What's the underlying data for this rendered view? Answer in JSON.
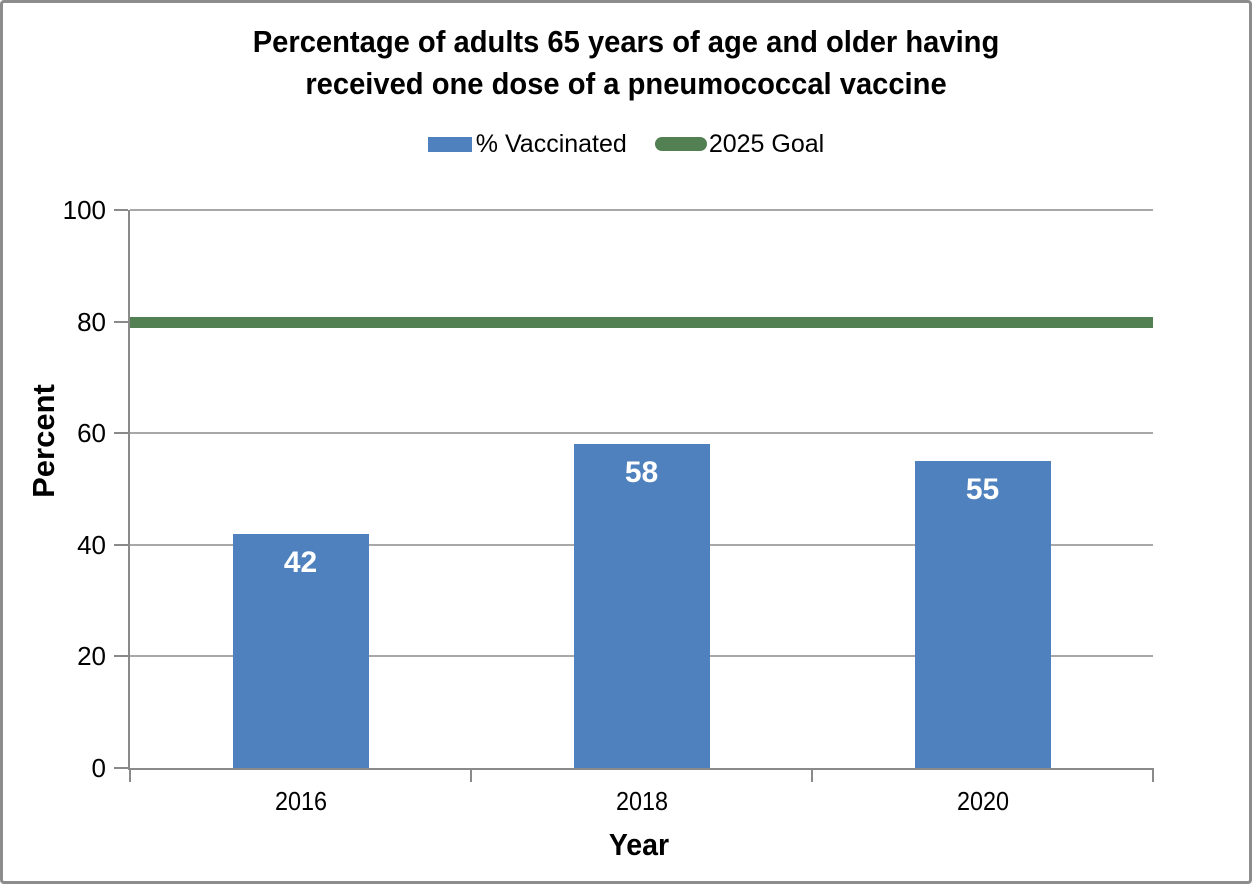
{
  "chart_data": {
    "type": "bar",
    "title": "Percentage of adults 65 years of age and older having received one dose of a pneumococcal vaccine",
    "title_lines": [
      "Percentage of adults 65 years of age and older having",
      "received one dose of a pneumococcal vaccine"
    ],
    "categories": [
      "2016",
      "2018",
      "2020"
    ],
    "series": [
      {
        "name": "% Vaccinated",
        "type": "bar",
        "values": [
          42,
          58,
          55
        ],
        "color": "#4E81BD"
      },
      {
        "name": "2025 Goal",
        "type": "line",
        "value": 80,
        "color": "#538052"
      }
    ],
    "bar_labels": [
      "42",
      "58",
      "55"
    ],
    "bar_label_color": "#ffffff",
    "xlabel": "Year",
    "ylabel": "Percent",
    "ylim": [
      0,
      100
    ],
    "yticks": [
      0,
      20,
      40,
      60,
      80,
      100
    ],
    "grid": true,
    "legend_position": "top",
    "colors": {
      "bar": "#4E81BD",
      "goal_line": "#538052",
      "axis": "#8a8a8a",
      "gridline": "#a8a8a8",
      "text": "#000000",
      "bar_label": "#ffffff"
    }
  }
}
